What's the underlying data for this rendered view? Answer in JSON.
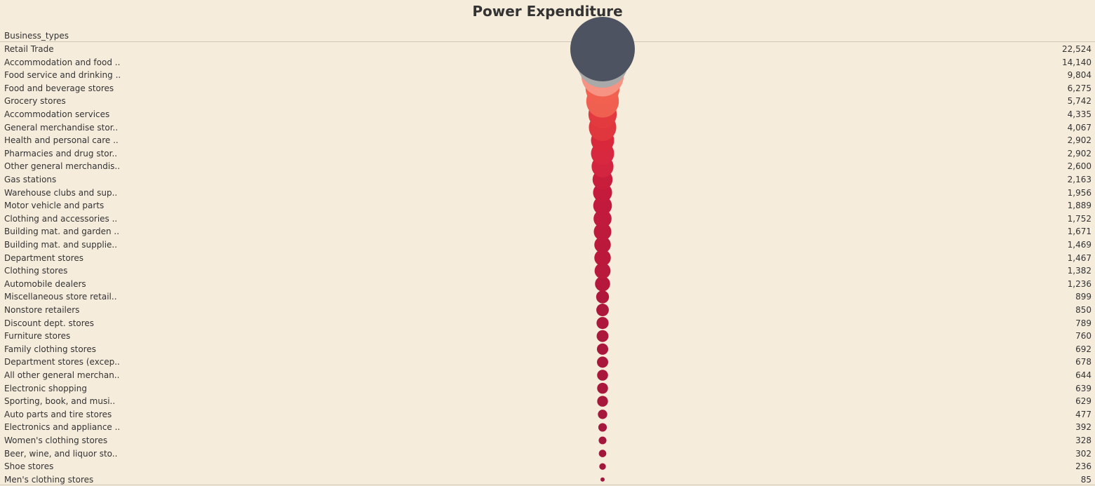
{
  "chart_data": {
    "type": "bubble",
    "title": "Power Expenditure",
    "column_header": "Business_types",
    "categories": [
      "Retail Trade",
      "Accommodation and food ..",
      "Food service and drinking ..",
      "Food and beverage stores",
      "Grocery stores",
      "Accommodation services",
      "General merchandise stor..",
      "Health and personal care ..",
      "Pharmacies and drug stor..",
      "Other general merchandis..",
      "Gas stations",
      "Warehouse clubs and sup..",
      "Motor vehicle and parts",
      "Clothing and accessories ..",
      "Building mat. and garden ..",
      "Building mat. and supplie..",
      "Department stores",
      "Clothing stores",
      "Automobile dealers",
      "Miscellaneous store retail..",
      "Nonstore retailers",
      "Discount dept. stores",
      "Furniture stores",
      "Family clothing stores",
      "Department stores (excep..",
      "All other general merchan..",
      "Electronic shopping",
      "Sporting, book, and  musi..",
      "Auto parts and tire stores",
      "Electronics and appliance ..",
      "Women's clothing stores",
      "Beer, wine, and liquor sto..",
      "Shoe stores",
      "Men's clothing stores"
    ],
    "values": [
      22524,
      14140,
      9804,
      6275,
      5742,
      4335,
      4067,
      2902,
      2902,
      2600,
      2163,
      1956,
      1889,
      1752,
      1671,
      1469,
      1467,
      1382,
      1236,
      899,
      850,
      789,
      760,
      692,
      678,
      644,
      639,
      629,
      477,
      392,
      328,
      302,
      236,
      85
    ],
    "value_labels": [
      "22,524",
      "14,140",
      "9,804",
      "6,275",
      "5,742",
      "4,335",
      "4,067",
      "2,902",
      "2,902",
      "2,600",
      "2,163",
      "1,956",
      "1,889",
      "1,752",
      "1,671",
      "1,469",
      "1,467",
      "1,382",
      "1,236",
      "899",
      "850",
      "789",
      "760",
      "692",
      "678",
      "644",
      "639",
      "629",
      "477",
      "392",
      "328",
      "302",
      "236",
      "85"
    ],
    "colors": [
      "#4d5360",
      "#a9a9a9",
      "#f79382",
      "#f2604f",
      "#f06050",
      "#e33a40",
      "#e0363e",
      "#d9283c",
      "#d82840",
      "#d42540",
      "#c91d3c",
      "#c41a3c",
      "#c21a3c",
      "#c01a3c",
      "#be1a3c",
      "#bb193c",
      "#ba193c",
      "#b8193c",
      "#b5183c",
      "#b0173c",
      "#ae173c",
      "#ad173c",
      "#ac173c",
      "#aa173c",
      "#aa173c",
      "#a9173c",
      "#a9173c",
      "#a8173c",
      "#a6173c",
      "#a5173c",
      "#a4173c",
      "#a4173c",
      "#a3173c",
      "#a2173c"
    ],
    "legend": "none",
    "grid": false
  }
}
